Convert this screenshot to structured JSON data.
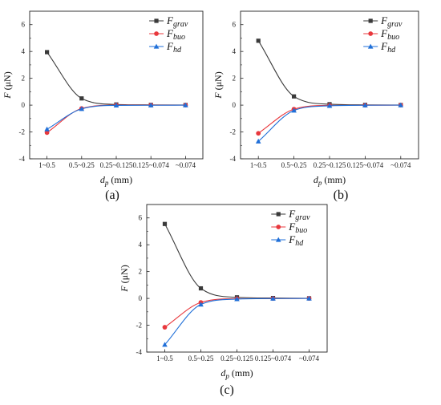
{
  "figure": {
    "captions": [
      "(a)",
      "(b)",
      "(c)"
    ]
  },
  "chart_data": [
    {
      "type": "line",
      "panel": "(a)",
      "categories": [
        "1~0.5",
        "0.5~0.25",
        "0.25~0.125",
        "0.125~0.074",
        "~0.074"
      ],
      "xlabel": {
        "main": "d",
        "sub": "p",
        "unit": " (mm)"
      },
      "ylabel": {
        "main": "F",
        "unit": " (μN)"
      },
      "ylim": [
        -4,
        7
      ],
      "yticks": [
        -4,
        -2,
        0,
        2,
        4,
        6
      ],
      "legend_position": "top-right",
      "series": [
        {
          "name_main": "F",
          "name_sub": "grav",
          "color": "#3a3a3a",
          "marker": "square",
          "values": [
            3.95,
            0.5,
            0.05,
            0.02,
            0.01
          ]
        },
        {
          "name_main": "F",
          "name_sub": "buo",
          "color": "#e8383d",
          "marker": "circle",
          "values": [
            -2.05,
            -0.25,
            0.0,
            0.0,
            0.0
          ]
        },
        {
          "name_main": "F",
          "name_sub": "hd",
          "color": "#1f6fd8",
          "marker": "triangle",
          "values": [
            -1.8,
            -0.28,
            -0.02,
            -0.01,
            0.0
          ]
        }
      ]
    },
    {
      "type": "line",
      "panel": "(b)",
      "categories": [
        "1~0.5",
        "0.5~0.25",
        "0.25~0.125",
        "0.125~0.074",
        "~0.074"
      ],
      "xlabel": {
        "main": "d",
        "sub": "p",
        "unit": " (mm)"
      },
      "ylabel": {
        "main": "F",
        "unit": " (μN)"
      },
      "ylim": [
        -4,
        7
      ],
      "yticks": [
        -4,
        -2,
        0,
        2,
        4,
        6
      ],
      "legend_position": "top-right",
      "series": [
        {
          "name_main": "F",
          "name_sub": "grav",
          "color": "#3a3a3a",
          "marker": "square",
          "values": [
            4.8,
            0.65,
            0.07,
            0.02,
            0.01
          ]
        },
        {
          "name_main": "F",
          "name_sub": "buo",
          "color": "#e8383d",
          "marker": "circle",
          "values": [
            -2.1,
            -0.3,
            -0.02,
            -0.01,
            0.0
          ]
        },
        {
          "name_main": "F",
          "name_sub": "hd",
          "color": "#1f6fd8",
          "marker": "triangle",
          "values": [
            -2.7,
            -0.4,
            -0.05,
            -0.01,
            0.0
          ]
        }
      ]
    },
    {
      "type": "line",
      "panel": "(c)",
      "categories": [
        "1~0.5",
        "0.5~0.25",
        "0.25~0.125",
        "0.125~0.074",
        "~0.074"
      ],
      "xlabel": {
        "main": "d",
        "sub": "p",
        "unit": " (mm)"
      },
      "ylabel": {
        "main": "F",
        "unit": " (μN)"
      },
      "ylim": [
        -4,
        7
      ],
      "yticks": [
        -4,
        -2,
        0,
        2,
        4,
        6
      ],
      "legend_position": "top-right",
      "series": [
        {
          "name_main": "F",
          "name_sub": "grav",
          "color": "#3a3a3a",
          "marker": "square",
          "values": [
            5.55,
            0.75,
            0.08,
            0.03,
            0.01
          ]
        },
        {
          "name_main": "F",
          "name_sub": "buo",
          "color": "#e8383d",
          "marker": "circle",
          "values": [
            -2.15,
            -0.3,
            -0.02,
            -0.01,
            0.0
          ]
        },
        {
          "name_main": "F",
          "name_sub": "hd",
          "color": "#1f6fd8",
          "marker": "triangle",
          "values": [
            -3.45,
            -0.45,
            -0.05,
            -0.01,
            0.0
          ]
        }
      ]
    }
  ]
}
